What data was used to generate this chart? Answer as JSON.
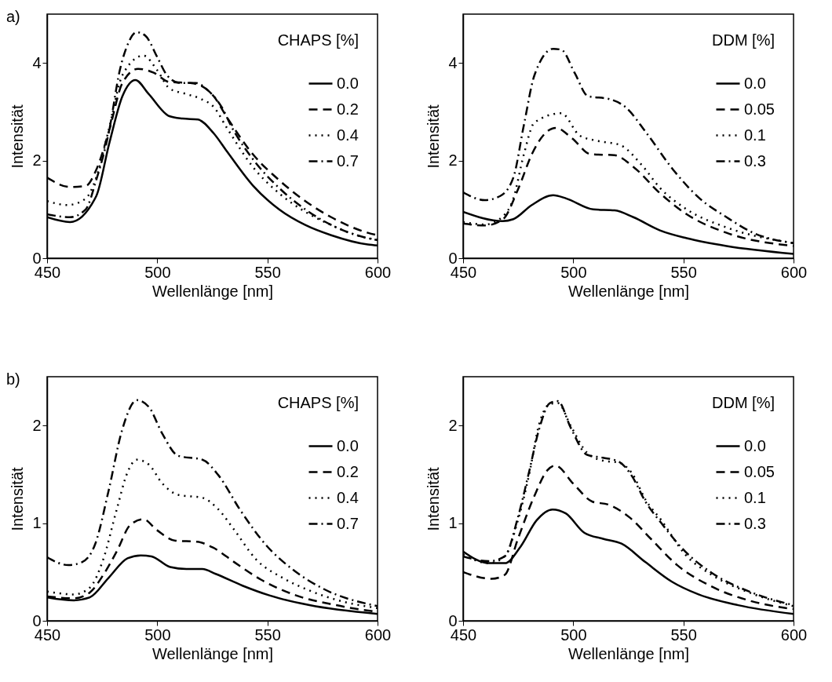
{
  "chart_data": [
    {
      "type": "line",
      "annotations": [
        "a)"
      ],
      "xlabel": "Wellenlänge [nm]",
      "ylabel": "Intensität",
      "legend_title": "CHAPS [%]",
      "legend": "top right",
      "grid": false,
      "xlim": [
        450,
        600
      ],
      "xticks": [
        450,
        500,
        550,
        600
      ],
      "ylim": [
        0,
        5
      ],
      "yticks": [
        0,
        2,
        4
      ],
      "series": [
        {
          "name": "0.0",
          "color": "#000000",
          "line_style": "solid",
          "x": [
            450,
            460.4,
            472.3,
            478.2,
            484.2,
            490.1,
            496,
            505.5,
            511.4,
            518.5,
            525.6,
            531.6,
            543.4,
            555.3,
            567.2,
            579,
            595.6,
            600
          ],
          "values": [
            0.84,
            0.74,
            1.27,
            2.35,
            3.32,
            3.65,
            3.37,
            2.91,
            2.86,
            2.84,
            2.56,
            2.19,
            1.49,
            1.0,
            0.68,
            0.47,
            0.28,
            0.26
          ]
        },
        {
          "name": "0.2",
          "color": "#000000",
          "line_style": "dashed",
          "x": [
            450,
            460.4,
            467.5,
            472.3,
            478.2,
            484.2,
            491.3,
            498.4,
            505.5,
            515,
            520,
            525.6,
            531.6,
            543.4,
            555.3,
            567.2,
            579,
            595.6,
            600
          ],
          "values": [
            1.65,
            1.46,
            1.48,
            1.81,
            2.62,
            3.59,
            3.88,
            3.8,
            3.61,
            3.59,
            3.53,
            3.32,
            2.89,
            2.13,
            1.6,
            1.17,
            0.84,
            0.52,
            0.47
          ]
        },
        {
          "name": "0.4",
          "color": "#000000",
          "line_style": "dotted",
          "x": [
            450,
            459.3,
            467.5,
            472.3,
            478.2,
            484.2,
            493.7,
            500,
            505.5,
            512.6,
            520,
            525.6,
            531.6,
            543.4,
            555.3,
            567.2,
            579,
            595.6,
            600
          ],
          "values": [
            1.17,
            1.09,
            1.22,
            1.65,
            2.67,
            3.75,
            4.15,
            3.85,
            3.48,
            3.37,
            3.26,
            3.1,
            2.67,
            1.87,
            1.33,
            0.95,
            0.68,
            0.41,
            0.38
          ]
        },
        {
          "name": "0.7",
          "color": "#000000",
          "line_style": "dashdot",
          "x": [
            450,
            460.4,
            467.5,
            472.3,
            478.2,
            483,
            486.7,
            490.7,
            494.8,
            500,
            504.4,
            510.2,
            517.4,
            523.2,
            529.2,
            534,
            543.4,
            555.3,
            567.2,
            579,
            595.6,
            600
          ],
          "values": [
            0.9,
            0.84,
            1.0,
            1.6,
            2.62,
            3.85,
            4.39,
            4.63,
            4.55,
            4.12,
            3.75,
            3.59,
            3.59,
            3.43,
            3.1,
            2.67,
            2.03,
            1.44,
            1.0,
            0.68,
            0.41,
            0.37
          ]
        }
      ]
    },
    {
      "type": "line",
      "xlabel": "Wellenlänge [nm]",
      "ylabel": "Intensität",
      "legend_title": "DDM [%]",
      "legend": "top right",
      "grid": false,
      "xlim": [
        450,
        600
      ],
      "xticks": [
        450,
        500,
        550,
        600
      ],
      "ylim": [
        0,
        5
      ],
      "yticks": [
        0,
        2,
        4
      ],
      "series": [
        {
          "name": "0.0",
          "color": "#000000",
          "line_style": "solid",
          "x": [
            450,
            467.9,
            472.8,
            481.2,
            490.9,
            497,
            509.1,
            518.8,
            527.3,
            539.4,
            551.5,
            569.6,
            600
          ],
          "values": [
            0.95,
            0.76,
            0.8,
            1.09,
            1.29,
            1.22,
            1.0,
            0.98,
            0.84,
            0.57,
            0.41,
            0.25,
            0.09
          ]
        },
        {
          "name": "0.05",
          "color": "#000000",
          "line_style": "dashed",
          "x": [
            450,
            459.9,
            467.9,
            475.2,
            481.2,
            487.3,
            492.1,
            499.4,
            507.9,
            518.8,
            527.3,
            539.4,
            551.5,
            569.6,
            600
          ],
          "values": [
            0.71,
            0.67,
            0.79,
            1.44,
            2.13,
            2.56,
            2.67,
            2.46,
            2.13,
            2.11,
            1.87,
            1.33,
            0.9,
            0.52,
            0.25
          ]
        },
        {
          "name": "0.1",
          "color": "#000000",
          "line_style": "dotted",
          "x": [
            450,
            459.9,
            467.9,
            472.8,
            477.6,
            482.4,
            494.6,
            503,
            511.5,
            521.2,
            530.9,
            539.4,
            551.5,
            569.6,
            600
          ],
          "values": [
            0.74,
            0.69,
            0.85,
            1.22,
            2.13,
            2.78,
            2.97,
            2.51,
            2.4,
            2.32,
            1.92,
            1.44,
            1.0,
            0.63,
            0.31
          ]
        },
        {
          "name": "0.3",
          "color": "#000000",
          "line_style": "dashdot",
          "x": [
            450,
            459.9,
            466.7,
            472.8,
            477.6,
            482.4,
            490.9,
            494.6,
            500.6,
            506.7,
            516.4,
            523.6,
            533.3,
            545.4,
            557.5,
            569.6,
            581.7,
            600
          ],
          "values": [
            1.35,
            1.19,
            1.27,
            1.65,
            2.73,
            3.75,
            4.29,
            4.27,
            3.8,
            3.32,
            3.26,
            3.1,
            2.56,
            1.81,
            1.22,
            0.84,
            0.52,
            0.31
          ]
        }
      ]
    },
    {
      "type": "line",
      "annotations": [
        "b)"
      ],
      "xlabel": "Wellenlänge [nm]",
      "ylabel": "Intensität",
      "legend_title": "CHAPS [%]",
      "legend": "top right",
      "grid": false,
      "xlim": [
        450,
        600
      ],
      "xticks": [
        450,
        500,
        550,
        600
      ],
      "ylim": [
        0,
        2.5
      ],
      "yticks": [
        0,
        1,
        2
      ],
      "series": [
        {
          "name": "0.0",
          "color": "#000000",
          "line_style": "solid",
          "x": [
            450,
            462.2,
            469.4,
            477.9,
            486.5,
            492.5,
            497.4,
            505.9,
            513.2,
            520.5,
            526.5,
            538.7,
            550.9,
            569.1,
            600
          ],
          "values": [
            0.24,
            0.21,
            0.24,
            0.44,
            0.64,
            0.67,
            0.66,
            0.55,
            0.53,
            0.53,
            0.48,
            0.36,
            0.26,
            0.16,
            0.07
          ]
        },
        {
          "name": "0.2",
          "color": "#000000",
          "line_style": "dashed",
          "x": [
            450,
            462.2,
            469.4,
            475.5,
            481.6,
            487.7,
            493.7,
            499.8,
            508.3,
            518,
            525.3,
            535,
            547.2,
            563,
            581.2,
            600
          ],
          "values": [
            0.25,
            0.23,
            0.29,
            0.47,
            0.71,
            0.98,
            1.04,
            0.93,
            0.82,
            0.81,
            0.75,
            0.6,
            0.42,
            0.26,
            0.16,
            0.09
          ]
        },
        {
          "name": "0.4",
          "color": "#000000",
          "line_style": "dotted",
          "x": [
            450,
            462.2,
            469.4,
            475.5,
            481.6,
            486.5,
            490.7,
            496.2,
            502.2,
            509.5,
            520.5,
            527.8,
            535,
            544.8,
            556.9,
            569.1,
            583.7,
            600
          ],
          "values": [
            0.3,
            0.27,
            0.34,
            0.63,
            1.14,
            1.52,
            1.65,
            1.6,
            1.41,
            1.29,
            1.26,
            1.14,
            0.93,
            0.63,
            0.44,
            0.31,
            0.2,
            0.13
          ]
        },
        {
          "name": "0.7",
          "color": "#000000",
          "line_style": "dashdot",
          "x": [
            450,
            459.7,
            465.8,
            471.9,
            477.9,
            484,
            490.7,
            496.2,
            502.2,
            509.5,
            520.5,
            527.8,
            537.5,
            549.6,
            561.8,
            575.2,
            600
          ],
          "values": [
            0.65,
            0.57,
            0.6,
            0.79,
            1.33,
            1.95,
            2.26,
            2.19,
            1.92,
            1.69,
            1.65,
            1.49,
            1.14,
            0.77,
            0.52,
            0.33,
            0.15
          ]
        }
      ]
    },
    {
      "type": "line",
      "xlabel": "Wellenlänge [nm]",
      "ylabel": "Intensität",
      "legend_title": "DDM [%]",
      "legend": "top right",
      "grid": false,
      "xlim": [
        450,
        600
      ],
      "xticks": [
        450,
        500,
        550,
        600
      ],
      "ylim": [
        0,
        2.5
      ],
      "yticks": [
        0,
        1,
        2
      ],
      "series": [
        {
          "name": "0.0",
          "color": "#000000",
          "line_style": "solid",
          "x": [
            450,
            461.7,
            468.9,
            476.1,
            483.4,
            490.6,
            496.6,
            505.1,
            513.5,
            521.9,
            532.8,
            544.8,
            556.9,
            574.9,
            600
          ],
          "values": [
            0.71,
            0.59,
            0.59,
            0.76,
            1.03,
            1.14,
            1.1,
            0.9,
            0.84,
            0.79,
            0.6,
            0.4,
            0.27,
            0.16,
            0.07
          ]
        },
        {
          "name": "0.05",
          "color": "#000000",
          "line_style": "dashed",
          "x": [
            450,
            462.9,
            468.9,
            474.9,
            482.2,
            488.2,
            491.8,
            500.2,
            508.7,
            515.9,
            525.5,
            535.2,
            547.2,
            562.9,
            581,
            600
          ],
          "values": [
            0.5,
            0.43,
            0.47,
            0.84,
            1.27,
            1.54,
            1.59,
            1.4,
            1.22,
            1.19,
            1.06,
            0.84,
            0.57,
            0.35,
            0.2,
            0.12
          ]
        },
        {
          "name": "0.1",
          "color": "#000000",
          "line_style": "dotted",
          "x": [
            450,
            461.7,
            468.9,
            474.9,
            479.8,
            484.6,
            489.4,
            493,
            499,
            506.3,
            513.5,
            520.7,
            526.7,
            532.8,
            540,
            550.8,
            562.9,
            581,
            600
          ],
          "values": [
            0.68,
            0.59,
            0.66,
            1.03,
            1.48,
            2.02,
            2.22,
            2.23,
            1.99,
            1.72,
            1.64,
            1.62,
            1.51,
            1.24,
            1.03,
            0.68,
            0.47,
            0.28,
            0.15
          ]
        },
        {
          "name": "0.3",
          "color": "#000000",
          "line_style": "dashdot",
          "x": [
            450,
            461.7,
            468.9,
            474.9,
            479.8,
            484.6,
            489.4,
            493,
            499,
            506.3,
            513.5,
            520.7,
            526.7,
            532.8,
            540,
            550.8,
            562.9,
            581,
            600
          ],
          "values": [
            0.66,
            0.61,
            0.66,
            1.06,
            1.51,
            1.97,
            2.23,
            2.25,
            1.97,
            1.7,
            1.67,
            1.63,
            1.48,
            1.22,
            1.0,
            0.71,
            0.49,
            0.29,
            0.16
          ]
        }
      ]
    }
  ]
}
